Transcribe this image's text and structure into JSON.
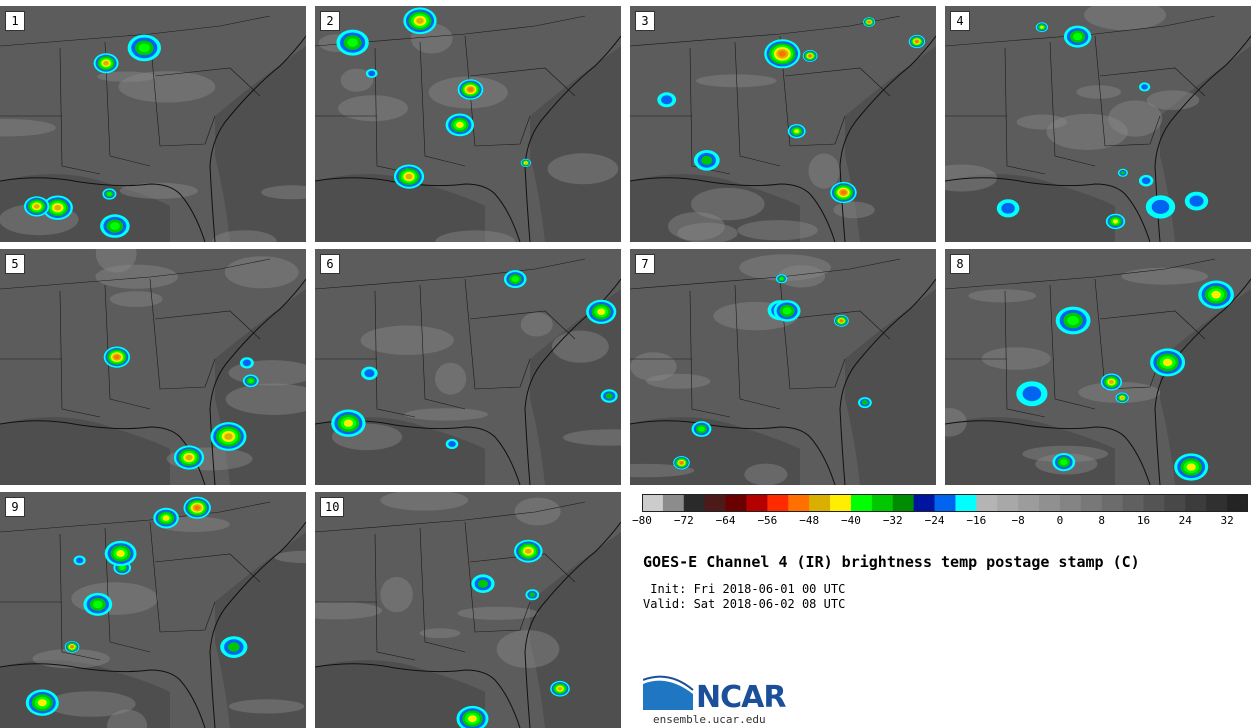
{
  "panels": [
    {
      "label": "1"
    },
    {
      "label": "2"
    },
    {
      "label": "3"
    },
    {
      "label": "4"
    },
    {
      "label": "5"
    },
    {
      "label": "6"
    },
    {
      "label": "7"
    },
    {
      "label": "8"
    },
    {
      "label": "9"
    },
    {
      "label": "10"
    }
  ],
  "colorbar": {
    "tick_labels": [
      "−80",
      "−72",
      "−64",
      "−56",
      "−48",
      "−40",
      "−32",
      "−24",
      "−16",
      "−8",
      "0",
      "8",
      "16",
      "24",
      "32"
    ],
    "colors": [
      "#cccccc",
      "#8c8c8c",
      "#2a2a2a",
      "#4d1a1a",
      "#6b0000",
      "#b50000",
      "#ff2a00",
      "#ff7000",
      "#d9b000",
      "#ffee00",
      "#00ff00",
      "#00c800",
      "#008c00",
      "#0014a0",
      "#0064f0",
      "#00ffff",
      "#b4b4b4",
      "#a8a8a8",
      "#9c9c9c",
      "#909090",
      "#848484",
      "#787878",
      "#6c6c6c",
      "#606060",
      "#545454",
      "#484848",
      "#3c3c3c",
      "#303030",
      "#242424"
    ]
  },
  "title": "GOES-E Channel 4 (IR) brightness temp postage stamp (C)",
  "init_line": " Init: Fri 2018-06-01 00 UTC",
  "valid_line": "Valid: Sat 2018-06-02 08 UTC",
  "logo": {
    "name": "NCAR",
    "url": "ensemble.ucar.edu"
  }
}
